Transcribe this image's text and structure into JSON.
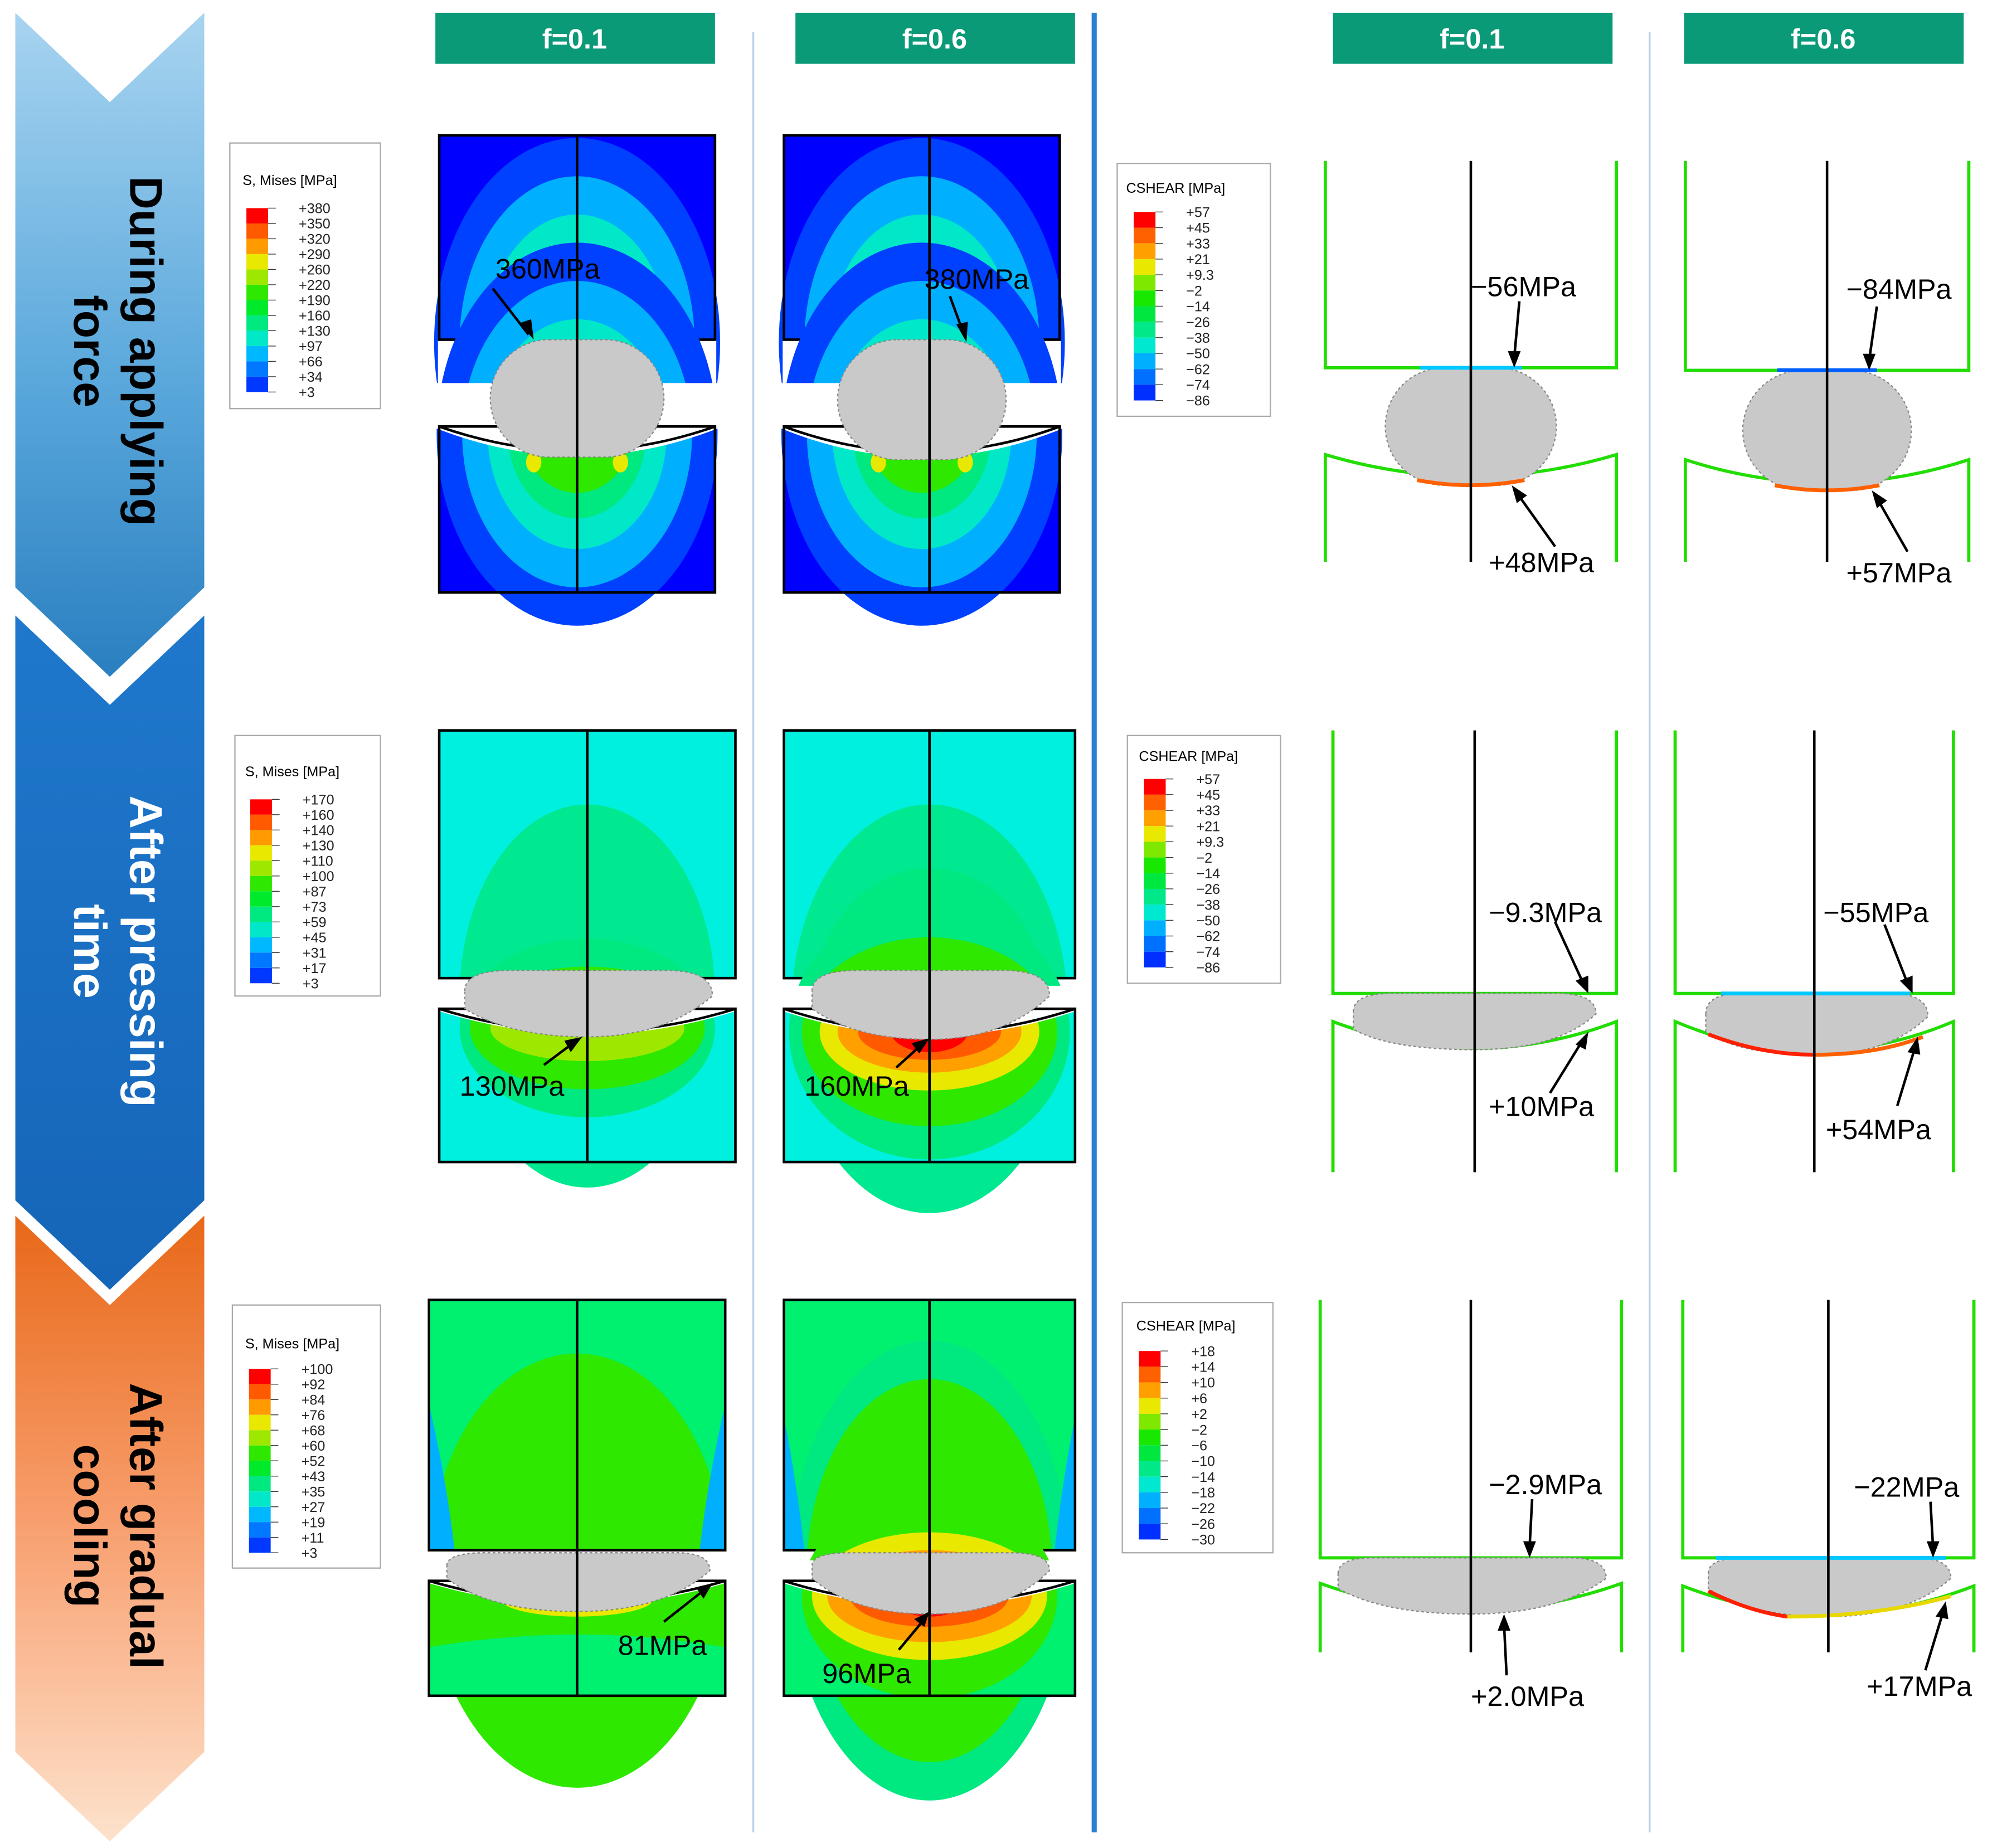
{
  "stages": [
    {
      "line1": "During applying",
      "line2": "force"
    },
    {
      "line1": "After pressing",
      "line2": "time"
    },
    {
      "line1": "After gradual",
      "line2": "cooling"
    }
  ],
  "columns": [
    {
      "label": "f=0.1"
    },
    {
      "label": "f=0.6"
    },
    {
      "label": "f=0.1"
    },
    {
      "label": "f=0.6"
    }
  ],
  "mises_title": "S, Mises [MPa]",
  "cshear_title": "CSHEAR [MPa]",
  "legends": {
    "mises": [
      [
        "+380",
        "+350",
        "+320",
        "+290",
        "+260",
        "+220",
        "+190",
        "+160",
        "+130",
        "+97",
        "+66",
        "+34",
        "+3"
      ],
      [
        "+170",
        "+160",
        "+140",
        "+130",
        "+110",
        "+100",
        "+87",
        "+73",
        "+59",
        "+45",
        "+31",
        "+17",
        "+3"
      ],
      [
        "+100",
        "+92",
        "+84",
        "+76",
        "+68",
        "+60",
        "+52",
        "+43",
        "+35",
        "+27",
        "+19",
        "+11",
        "+3"
      ]
    ],
    "cshear": [
      [
        "+57",
        "+45",
        "+33",
        "+21",
        "+9.3",
        "−2",
        "−14",
        "−26",
        "−38",
        "−50",
        "−62",
        "−74",
        "−86"
      ],
      [
        "+57",
        "+45",
        "+33",
        "+21",
        "+9.3",
        "−2",
        "−14",
        "−26",
        "−38",
        "−50",
        "−62",
        "−74",
        "−86"
      ],
      [
        "+18",
        "+14",
        "+10",
        "+6",
        "+2",
        "−2",
        "−6",
        "−10",
        "−14",
        "−18",
        "−22",
        "−26",
        "−30"
      ]
    ]
  },
  "annotations": {
    "mises": [
      [
        "360MPa",
        "380MPa"
      ],
      [
        "130MPa",
        "160MPa"
      ],
      [
        "81MPa",
        "96MPa"
      ]
    ],
    "cshear_top": [
      [
        "−56MPa",
        "−84MPa"
      ],
      [
        "−9.3MPa",
        "−55MPa"
      ],
      [
        "−2.9MPa",
        "−22MPa"
      ]
    ],
    "cshear_bottom": [
      [
        "+48MPa",
        "+57MPa"
      ],
      [
        "+10MPa",
        "+54MPa"
      ],
      [
        "+2.0MPa",
        "+17MPa"
      ]
    ]
  },
  "colors": {
    "header_bg": "#0b9a78",
    "divider": "#2a7fd0",
    "scale": [
      "#ff0000",
      "#ff5a00",
      "#ff9a00",
      "#e8e800",
      "#9ee800",
      "#2ee800",
      "#00ea2c",
      "#00e880",
      "#00e8c8",
      "#00b8ff",
      "#0078ff",
      "#0038ff",
      "#0000ff"
    ],
    "cs_scale": [
      "#ff0000",
      "#ff6000",
      "#ffa000",
      "#e8e800",
      "#7ee800",
      "#18e800",
      "#00e840",
      "#00e888",
      "#00e8d0",
      "#00b0ff",
      "#0070ff",
      "#0030ff",
      "#0000e8"
    ]
  }
}
